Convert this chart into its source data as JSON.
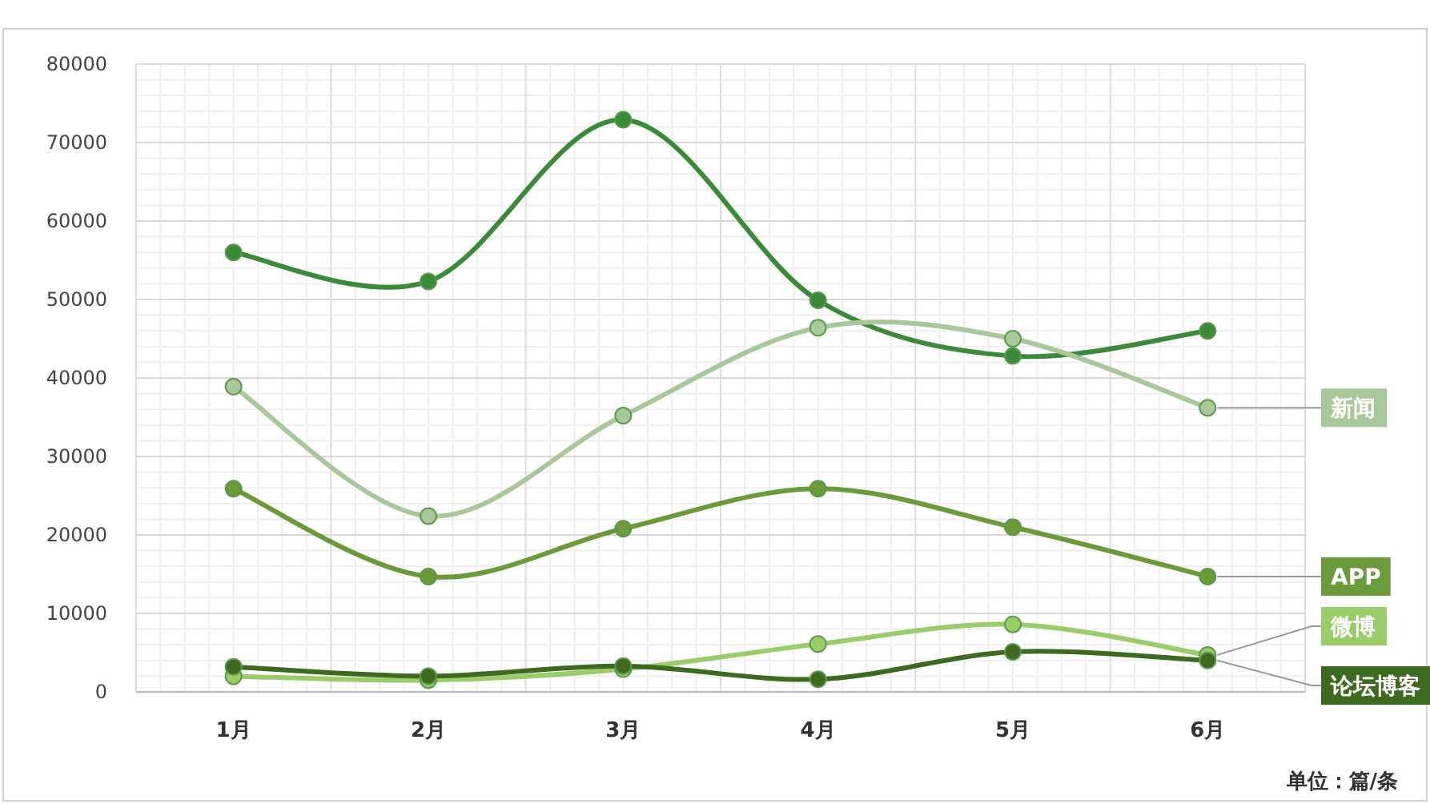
{
  "chart_data": {
    "type": "line",
    "categories": [
      "1月",
      "2月",
      "3月",
      "4月",
      "5月",
      "6月"
    ],
    "series": [
      {
        "color": "#3a8a3a",
        "values": [
          56000,
          52300,
          72900,
          49900,
          42800,
          46000
        ]
      },
      {
        "name": "新闻",
        "color": "#a8c89a",
        "values": [
          38900,
          22400,
          35200,
          46400,
          45000,
          36200
        ]
      },
      {
        "name": "APP",
        "color": "#6a9a3a",
        "values": [
          25900,
          14700,
          20800,
          25900,
          21000,
          14700
        ]
      },
      {
        "name": "微博",
        "color": "#9acd6a",
        "values": [
          2000,
          1500,
          2900,
          6100,
          8600,
          4700
        ]
      },
      {
        "name": "论坛博客",
        "color": "#3d6a1f",
        "values": [
          3200,
          2000,
          3300,
          1600,
          5100,
          4000
        ]
      }
    ],
    "ylim": [
      0,
      80000
    ],
    "yticks": [
      0,
      10000,
      20000,
      30000,
      40000,
      50000,
      60000,
      70000,
      80000
    ],
    "grid": true,
    "marker": "circle",
    "line_style": "solid",
    "annotations": [
      "单位：篇/条"
    ]
  }
}
